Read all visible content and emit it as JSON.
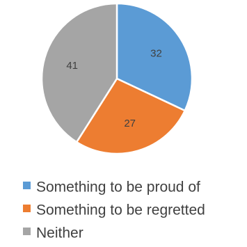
{
  "chart_data": {
    "type": "pie",
    "title": "",
    "slices": [
      {
        "label": "Something to be proud of",
        "value": 32,
        "color": "#5B9BD5"
      },
      {
        "label": "Something to be regretted",
        "value": 27,
        "color": "#ED7D31"
      },
      {
        "label": "Neither",
        "value": 41,
        "color": "#A5A5A5"
      }
    ],
    "data_labels": [
      "32",
      "27",
      "41"
    ],
    "legend": {
      "position": "bottom",
      "items": [
        {
          "label": "Something to be proud of",
          "color": "#5B9BD5"
        },
        {
          "label": "Something to be regretted",
          "color": "#ED7D31"
        },
        {
          "label": "Neither",
          "color": "#A5A5A5"
        }
      ]
    }
  }
}
